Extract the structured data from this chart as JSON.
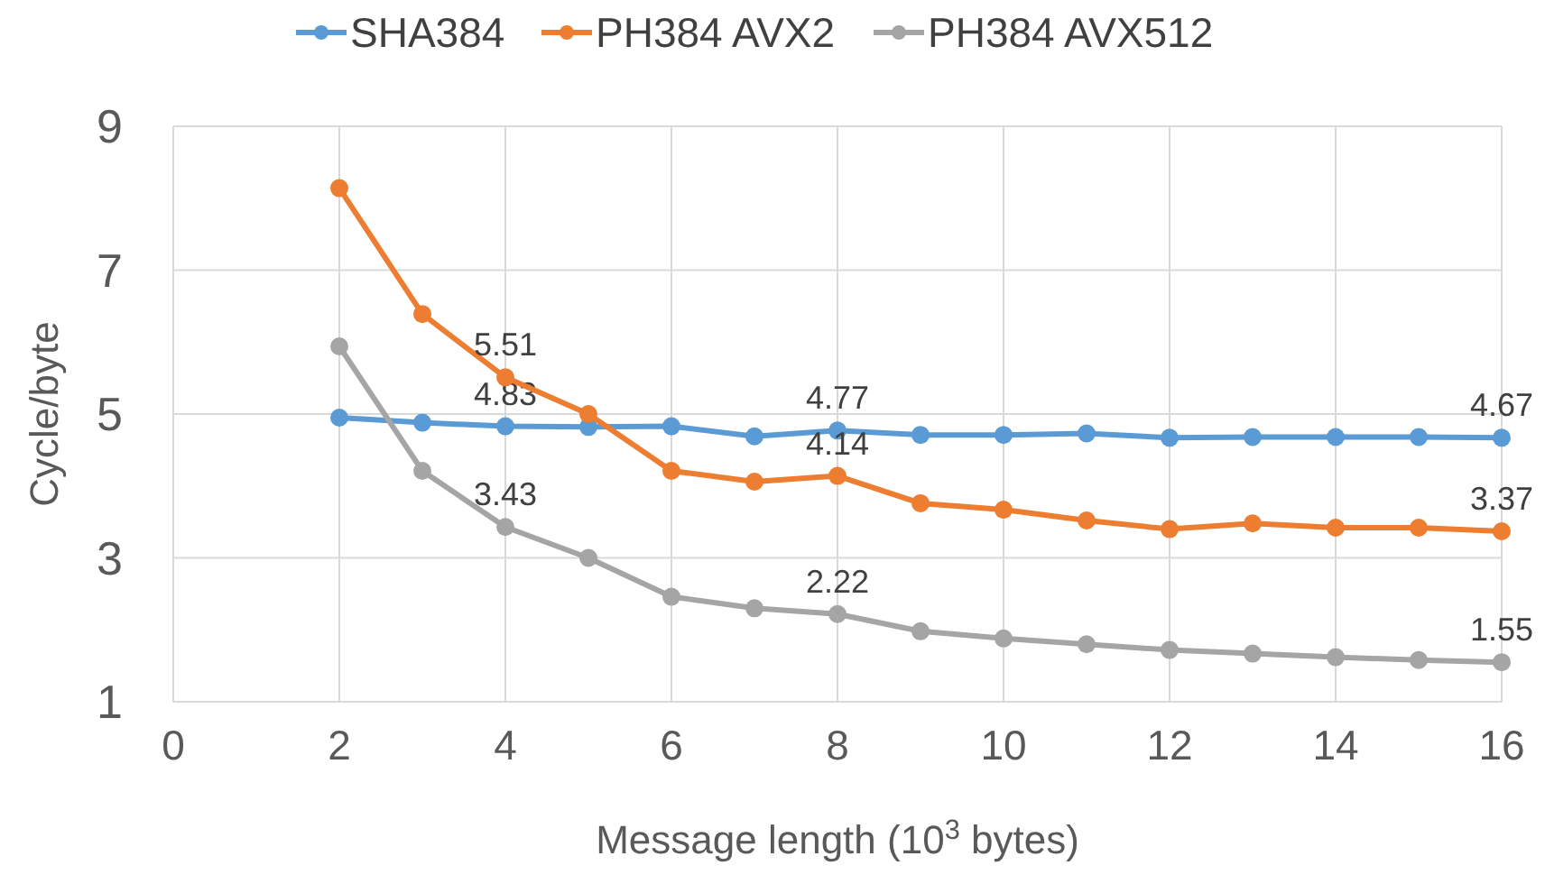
{
  "chart_data": {
    "type": "line",
    "xlabel": "Message length (10$^{3}$ bytes)",
    "ylabel": "Cycle/byte",
    "x": [
      2,
      3,
      4,
      5,
      6,
      7,
      8,
      9,
      10,
      11,
      12,
      13,
      14,
      15,
      16
    ],
    "xlim": [
      0,
      16
    ],
    "xticks": [
      0,
      2,
      4,
      6,
      8,
      10,
      12,
      14,
      16
    ],
    "ylim": [
      1,
      9
    ],
    "yticks": [
      1,
      3,
      5,
      7,
      9
    ],
    "grid": true,
    "legend": "top",
    "marker": "circle",
    "line_style": "solid",
    "series": [
      {
        "name": "SHA384",
        "color": "#5b9bd5",
        "values": [
          4.95,
          4.88,
          4.83,
          4.82,
          4.83,
          4.69,
          4.77,
          4.71,
          4.71,
          4.73,
          4.67,
          4.68,
          4.68,
          4.68,
          4.67
        ],
        "value_labels": [
          null,
          null,
          "4.83",
          null,
          null,
          null,
          "4.77",
          null,
          null,
          null,
          null,
          null,
          null,
          null,
          "4.67"
        ]
      },
      {
        "name": "PH384 AVX2",
        "color": "#ed7d31",
        "values": [
          8.14,
          6.39,
          5.51,
          5.0,
          4.21,
          4.06,
          4.14,
          3.76,
          3.67,
          3.52,
          3.4,
          3.48,
          3.42,
          3.42,
          3.37
        ],
        "value_labels": [
          null,
          null,
          "5.51",
          null,
          null,
          null,
          "4.14",
          null,
          null,
          null,
          null,
          null,
          null,
          null,
          "3.37"
        ]
      },
      {
        "name": "PH384 AVX512",
        "color": "#a5a5a5",
        "values": [
          5.94,
          4.21,
          3.43,
          3.0,
          2.46,
          2.3,
          2.22,
          1.98,
          1.88,
          1.8,
          1.72,
          1.67,
          1.62,
          1.58,
          1.55
        ],
        "value_labels": [
          null,
          null,
          "3.43",
          null,
          null,
          null,
          "2.22",
          null,
          null,
          null,
          null,
          null,
          null,
          null,
          "1.55"
        ]
      }
    ]
  }
}
